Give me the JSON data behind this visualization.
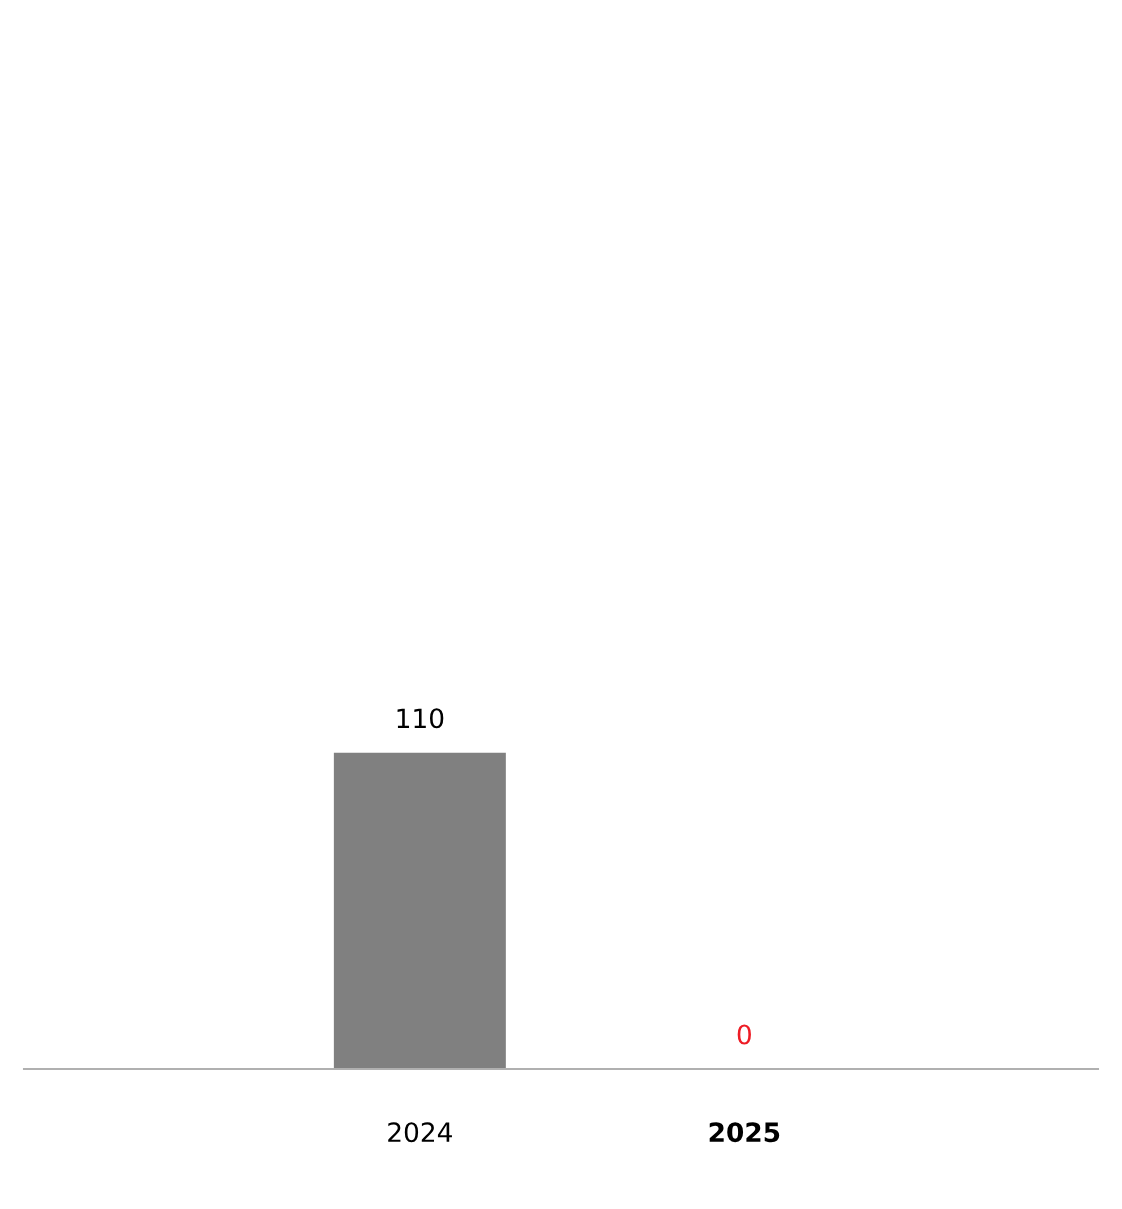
{
  "chart_data": {
    "type": "bar",
    "categories": [
      "2024",
      "2025"
    ],
    "values": [
      110,
      0
    ],
    "colors": [
      "#808080",
      "#ee1c25"
    ],
    "data_labels": true,
    "grid": false
  }
}
